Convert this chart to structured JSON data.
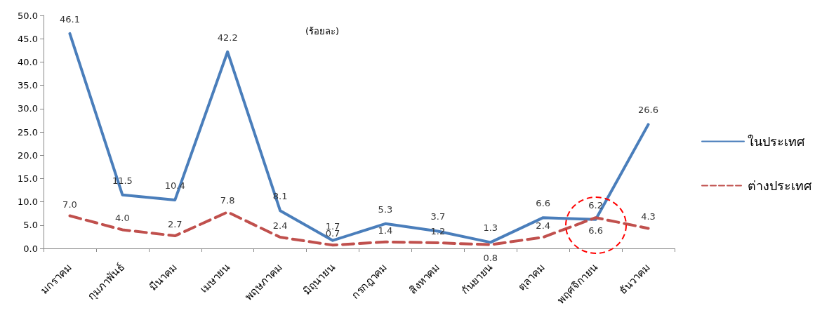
{
  "chart_data": {
    "type": "line",
    "categories": [
      "มกราคม",
      "กุมภาพันธ์",
      "มีนาคม",
      "เมษายน",
      "พฤษภาคม",
      "มิถุนายน",
      "กรกฎาคม",
      "สิงหาคม",
      "กันยายน",
      "ตุลาคม",
      "พฤศจิกายน",
      "ธันวาคม"
    ],
    "series": [
      {
        "name": "ในประเทศ",
        "color": "#4a7ebb",
        "line_style": "solid",
        "values": [
          46.1,
          11.5,
          10.4,
          42.2,
          8.1,
          1.7,
          5.3,
          3.7,
          1.3,
          6.6,
          6.2,
          26.6
        ],
        "value_labels": [
          "46.1",
          "11.5",
          "10.4",
          "42.2",
          "8.1",
          "1.7",
          "5.3",
          "3.7",
          "1.3",
          "6.6",
          "6.2",
          "26.6"
        ]
      },
      {
        "name": "ต่างประเทศ",
        "color": "#c0504d",
        "line_style": "dashed",
        "values": [
          7.0,
          4.0,
          2.7,
          7.8,
          2.4,
          0.7,
          1.4,
          1.2,
          0.8,
          2.4,
          6.6,
          4.3
        ],
        "value_labels": [
          "7.0",
          "4.0",
          "2.7",
          "7.8",
          "2.4",
          "0.7",
          "1.4",
          "1.2",
          "0.8",
          "2.4",
          "6.6",
          "4.3"
        ]
      }
    ],
    "ylim": [
      0,
      50
    ],
    "yticks": [
      {
        "value": 0,
        "label": "0.0"
      },
      {
        "value": 5,
        "label": "5.0"
      },
      {
        "value": 10,
        "label": "10.0"
      },
      {
        "value": 15,
        "label": "15.0"
      },
      {
        "value": 20,
        "label": "20.0"
      },
      {
        "value": 25,
        "label": "25.0"
      },
      {
        "value": 30,
        "label": "30.0"
      },
      {
        "value": 35,
        "label": "35.0"
      },
      {
        "value": 40,
        "label": "40.0"
      },
      {
        "value": 45,
        "label": "45.0"
      },
      {
        "value": 50,
        "label": "50.0"
      }
    ],
    "annotations": [
      "(ร้อยละ)"
    ],
    "legend": "right",
    "grid": false,
    "marker": "none"
  }
}
